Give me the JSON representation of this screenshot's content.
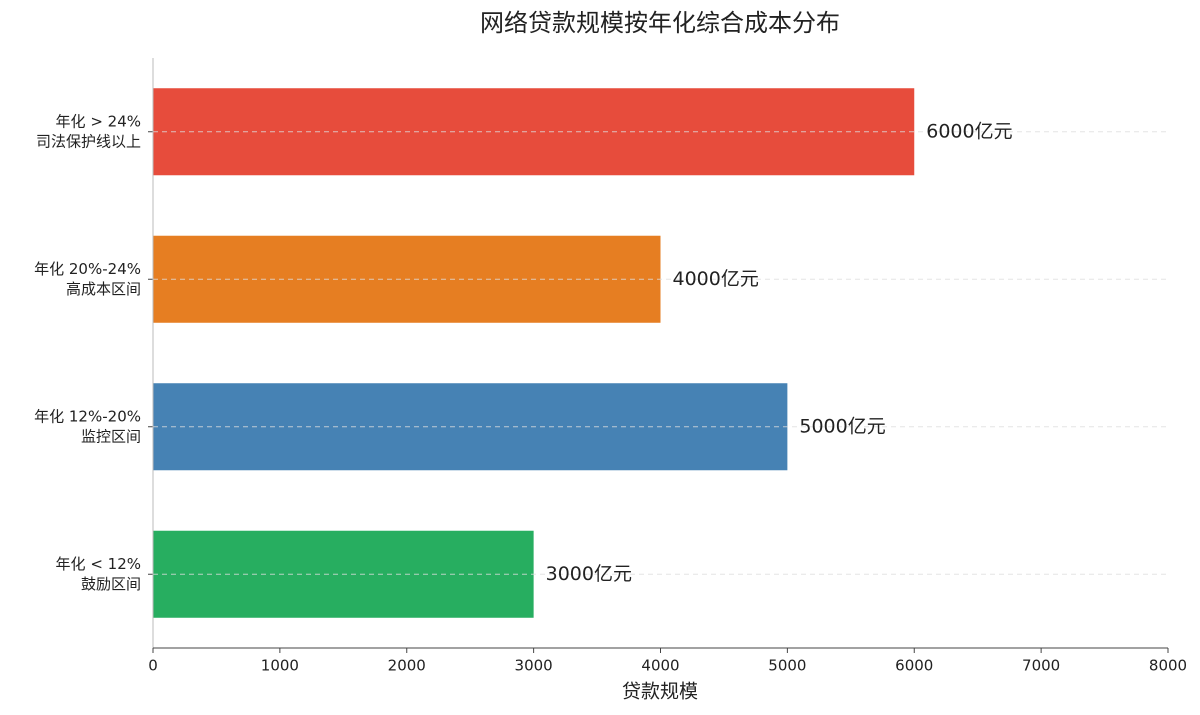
{
  "chart_data": {
    "type": "barh",
    "title": "网络贷款规模按年化综合成本分布",
    "categories": [
      [
        "年化 > 24%",
        "司法保护线以上"
      ],
      [
        "年化 20%-24%",
        "高成本区间"
      ],
      [
        "年化 12%-20%",
        "监控区间"
      ],
      [
        "年化 < 12%",
        "鼓励区间"
      ]
    ],
    "values": [
      6000,
      4000,
      5000,
      3000
    ],
    "value_labels": [
      "6000亿元",
      "4000亿元",
      "5000亿元",
      "3000亿元"
    ],
    "colors": [
      "#e74c3c",
      "#e67e22",
      "#4682b4",
      "#27ae60"
    ],
    "xlabel": "贷款规模",
    "xlim": [
      0,
      8000
    ],
    "xticks": [
      0,
      1000,
      2000,
      3000,
      4000,
      5000,
      6000,
      7000,
      8000
    ],
    "grid": true
  }
}
